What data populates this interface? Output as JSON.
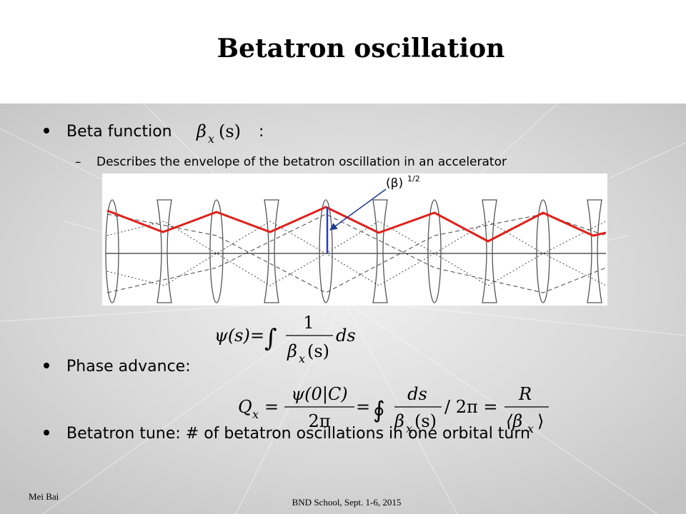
{
  "title": "Betatron oscillation",
  "bullets": [
    {
      "text": "Beta function",
      "suffix": ":",
      "subbullet": "Describes the envelope of the betatron oscillation in an accelerator"
    },
    {
      "text": "Phase advance:"
    },
    {
      "text": "Betatron tune: # of betatron oscillations in one orbital turn"
    }
  ],
  "diagram": {
    "label": "(β)",
    "label_exponent": "1/2"
  },
  "formulas": {
    "beta": {
      "symbol": "β",
      "subscript": "x",
      "argument": "(s)"
    },
    "phase": {
      "lhs": "ψ(s)",
      "equals": "=",
      "integral": "∫",
      "numerator": "1",
      "symbol": "β",
      "subscript": "x",
      "argument": "(s)",
      "tail": "ds"
    },
    "tune": {
      "lhs": "Q",
      "lhs_subscript": "x",
      "equals": "=",
      "numerator1": "ψ(0|C)",
      "denominator1": "2π",
      "integral": "∮",
      "numerator2": "ds",
      "symbol": "β",
      "subscript": "x",
      "argument": "(s)",
      "middle": "/ 2π =",
      "numerator3": "R",
      "denominator3": "⟨β",
      "denominator3_subscript": "x",
      "denominator3_close": "⟩"
    }
  },
  "footer": {
    "author": "Mei Bai",
    "event": "BND School, Sept. 1-6, 2015"
  }
}
